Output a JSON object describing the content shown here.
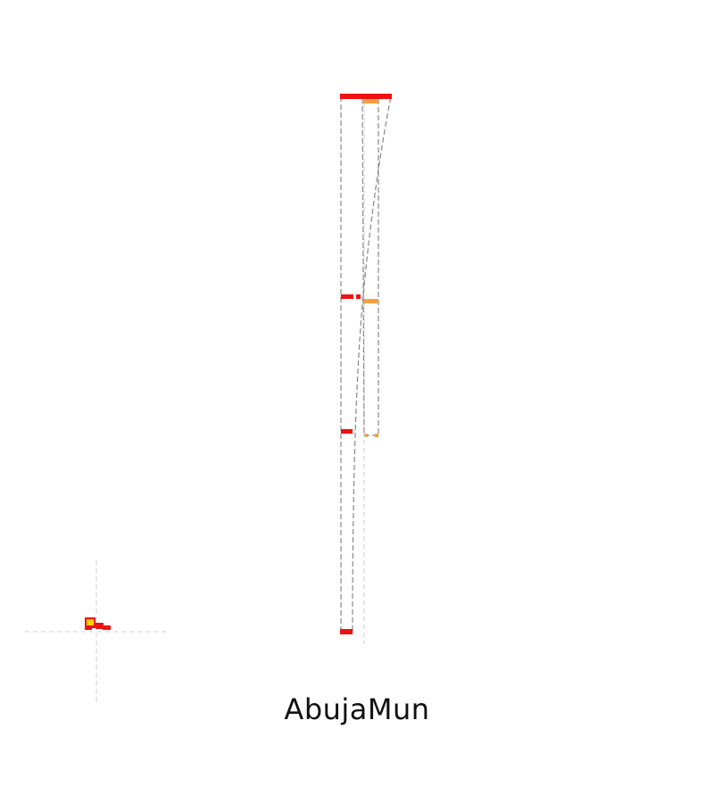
{
  "caption": "AbujaMun",
  "colors": {
    "background": "#ffffff",
    "primary_bar": "#ee1111",
    "secondary_bar": "#f5a040",
    "highlight": "#ffd400",
    "outline": "#888888",
    "crosshair": "#cccccc",
    "text": "#111111"
  }
}
